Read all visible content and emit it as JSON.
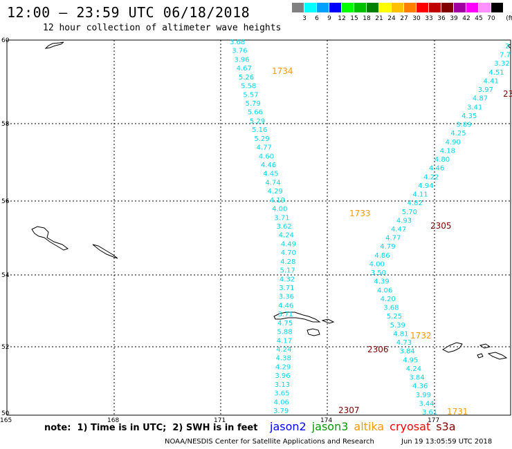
{
  "title": "12:00 – 23:59 UTC 06/18/2018",
  "subtitle": "12 hour collection of altimeter wave heights",
  "legend": {
    "unit": "(ft)",
    "bins": [
      {
        "label": "3",
        "color": "#808080"
      },
      {
        "label": "6",
        "color": "#00ffff"
      },
      {
        "label": "9",
        "color": "#00a0ff"
      },
      {
        "label": "12",
        "color": "#0000ff"
      },
      {
        "label": "15",
        "color": "#00ff00"
      },
      {
        "label": "18",
        "color": "#00c000"
      },
      {
        "label": "21",
        "color": "#008000"
      },
      {
        "label": "24",
        "color": "#ffff00"
      },
      {
        "label": "27",
        "color": "#ffc000"
      },
      {
        "label": "30",
        "color": "#ff8000"
      },
      {
        "label": "33",
        "color": "#ff0000"
      },
      {
        "label": "36",
        "color": "#c00000"
      },
      {
        "label": "39",
        "color": "#800000"
      },
      {
        "label": "42",
        "color": "#a000a0"
      },
      {
        "label": "45",
        "color": "#ff00ff"
      },
      {
        "label": "70",
        "color": "#ff90ff"
      },
      {
        "label": "",
        "color": "#000000"
      }
    ]
  },
  "map": {
    "lat_labels": [
      "60",
      "58",
      "56",
      "54",
      "52",
      "50"
    ],
    "lon_labels": [
      "165",
      "168",
      "171",
      "174",
      "177"
    ],
    "track_a_values": [
      "3.68",
      "3.76",
      "3.96",
      "4.67",
      "5.26",
      "5.58",
      "5.57",
      "5.79",
      "5.66",
      "5.29",
      "5.16",
      "5.29",
      "4.77",
      "4.60",
      "4.46",
      "4.45",
      "4.74",
      "4.29",
      "4.19",
      "4.00",
      "3.71",
      "3.62",
      "4.24",
      "4.49",
      "4.70",
      "4.28",
      "5.17",
      "4.32",
      "3.71",
      "3.36",
      "4.46",
      "3.71",
      "4.75",
      "5.88",
      "4.17",
      "4.24",
      "4.38",
      "4.29",
      "3.96",
      "3.13",
      "3.65",
      "4.06",
      "3.79"
    ],
    "track_b_values": [
      "2",
      "7.7",
      "3.32",
      "4.51",
      "4.41",
      "3.97",
      "4.87",
      "3.41",
      "4.35",
      "3.89",
      "4.25",
      "4.90",
      "4.18",
      "4.80",
      "4.46",
      "4.22",
      "4.94",
      "4.11",
      "4.82",
      "5.70",
      "4.93",
      "4.47",
      "4.77",
      "4.79",
      "4.86",
      "4.00",
      "3.50",
      "4.39",
      "4.06",
      "4.20",
      "3.68",
      "5.25",
      "5.39",
      "4.81",
      "4.73",
      "3.84",
      "4.95",
      "4.24",
      "3.84",
      "4.36",
      "3.99",
      "3.44",
      "3.61"
    ],
    "time_labels": [
      {
        "text": "1734",
        "color": "#ff9900"
      },
      {
        "text": "1733",
        "color": "#ff9900"
      },
      {
        "text": "2305",
        "color": "#800000"
      },
      {
        "text": "1732",
        "color": "#ff9900"
      },
      {
        "text": "2306",
        "color": "#800000"
      },
      {
        "text": "2307",
        "color": "#800000"
      },
      {
        "text": "1731",
        "color": "#ff9900"
      },
      {
        "text": "23",
        "color": "#800000"
      }
    ]
  },
  "footer": {
    "note": "note:  1) Time is in UTC;  2) SWH is in feet",
    "satellites": [
      {
        "name": "jason2",
        "color": "#0000ff"
      },
      {
        "name": "jason3",
        "color": "#009900"
      },
      {
        "name": "altika",
        "color": "#ff9900"
      },
      {
        "name": "cryosat",
        "color": "#ff0000"
      },
      {
        "name": "s3a",
        "color": "#800000"
      }
    ],
    "credit": "NOAA/NESDIS Center for Satellite Applications and Research",
    "timestamp": "Jun 19 13:05:59 UTC 2018"
  }
}
